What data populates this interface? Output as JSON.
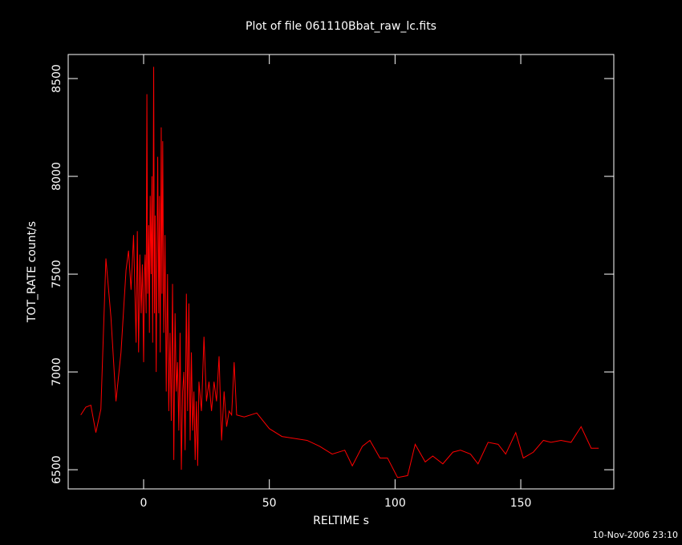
{
  "chart_data": {
    "type": "line",
    "title": "Plot of file 061110Bbat_raw_lc.fits",
    "x_label": "RELTIME  s",
    "y_label": "TOT_RATE  count/s",
    "footer": "10-Nov-2006 23:10",
    "xlim": [
      -30,
      187
    ],
    "ylim": [
      6402,
      8623
    ],
    "xticks": [
      0,
      50,
      100,
      150
    ],
    "yticks": [
      6500,
      7000,
      7500,
      8000,
      8500
    ],
    "series": [
      {
        "name": "TOT_RATE",
        "color": "#ff0000",
        "x": [
          -25,
          -23,
          -21,
          -19,
          -17,
          -15,
          -13,
          -11,
          -9,
          -7,
          -6,
          -5,
          -4,
          -3,
          -2.5,
          -2,
          -1.5,
          -1,
          -0.5,
          0,
          0.3,
          0.6,
          1,
          1.3,
          1.6,
          2,
          2.3,
          2.6,
          3,
          3.3,
          3.6,
          4,
          4.3,
          4.6,
          5,
          5.3,
          5.6,
          6,
          6.3,
          6.6,
          7,
          7.3,
          7.6,
          8,
          8.5,
          9,
          9.5,
          10,
          10.5,
          11,
          11.5,
          12,
          12.5,
          13,
          13.5,
          14,
          14.5,
          15,
          15.5,
          16,
          16.5,
          17,
          17.5,
          18,
          18.5,
          19,
          19.5,
          20,
          20.5,
          21,
          21.5,
          22,
          23,
          24,
          25,
          26,
          27,
          28,
          29,
          30,
          31,
          32,
          33,
          34,
          35,
          36,
          37,
          40,
          45,
          50,
          55,
          65,
          70,
          75,
          80,
          83,
          87,
          90,
          94,
          97,
          101,
          105,
          108,
          112,
          115,
          119,
          123,
          126,
          130,
          133,
          137,
          141,
          144,
          148,
          151,
          155,
          159,
          162,
          166,
          170,
          174,
          178,
          181
        ],
        "values": [
          6780,
          6820,
          6830,
          6690,
          6810,
          7580,
          7280,
          6850,
          7100,
          7520,
          7620,
          7420,
          7700,
          7150,
          7720,
          7100,
          7600,
          7300,
          7550,
          7050,
          7500,
          7600,
          7300,
          8420,
          7400,
          7750,
          7200,
          7900,
          7500,
          8000,
          7150,
          8560,
          7300,
          7800,
          7000,
          7600,
          8100,
          7300,
          7900,
          7100,
          8250,
          7400,
          8180,
          7200,
          7700,
          6900,
          7500,
          6800,
          7200,
          6750,
          7450,
          6550,
          7300,
          6900,
          7050,
          6700,
          7200,
          6500,
          6900,
          7000,
          6600,
          7400,
          6800,
          7350,
          6650,
          7100,
          6700,
          6900,
          6550,
          6850,
          6520,
          6950,
          6800,
          7180,
          6850,
          6950,
          6800,
          6950,
          6850,
          7080,
          6650,
          6900,
          6720,
          6800,
          6780,
          7050,
          6780,
          6770,
          6790,
          6710,
          6670,
          6650,
          6620,
          6580,
          6600,
          6520,
          6620,
          6650,
          6560,
          6560,
          6460,
          6470,
          6630,
          6540,
          6570,
          6530,
          6590,
          6600,
          6580,
          6530,
          6640,
          6630,
          6580,
          6690,
          6560,
          6590,
          6650,
          6640,
          6650,
          6640,
          6720,
          6610,
          6610
        ]
      }
    ]
  }
}
